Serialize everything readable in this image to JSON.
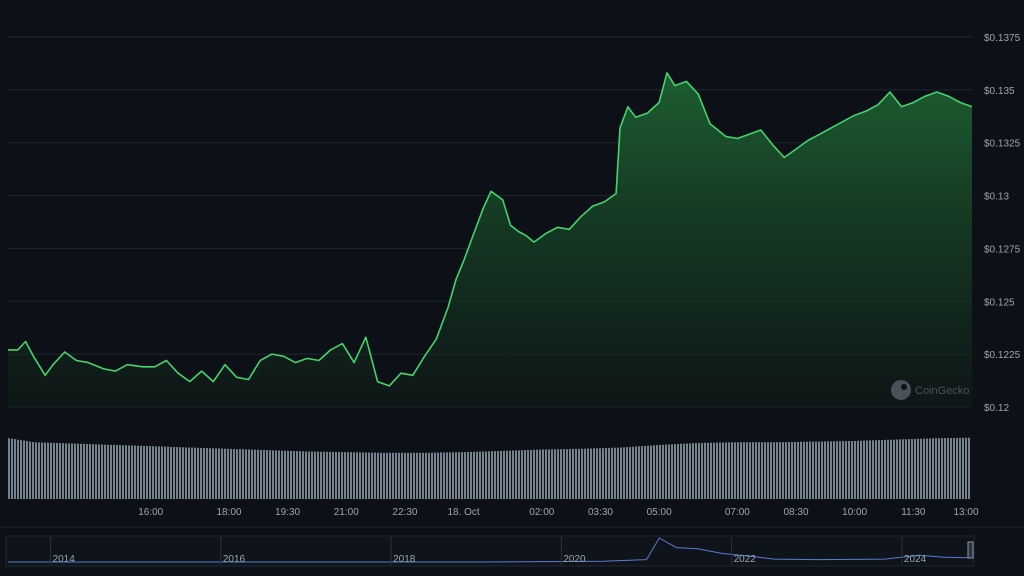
{
  "theme": {
    "background": "#0d1117",
    "grid": "#1f2630",
    "line": "#45d36b",
    "area_top": "#1f6b35",
    "area_bottom": "#0f1a16",
    "volume": "#8b96a4",
    "axis_text": "#9aa4b1",
    "nav_line": "#5a7bd0",
    "watermark": "#5d6470"
  },
  "watermark": {
    "label": "CoinGecko"
  },
  "chart_data": {
    "type": "area",
    "title": "",
    "xlabel": "",
    "ylabel": "",
    "y_ticks": [
      "$0.12",
      "$0.1225",
      "$0.125",
      "$0.1275",
      "$0.13",
      "$0.1325",
      "$0.135",
      "$0.1375"
    ],
    "y_tick_values": [
      0.12,
      0.1225,
      0.125,
      0.1275,
      0.13,
      0.1325,
      0.135,
      0.1375
    ],
    "ylim": [
      0.12,
      0.1375
    ],
    "x_ticks": [
      "16:00",
      "18:00",
      "19:30",
      "21:00",
      "22:30",
      "18. Oct",
      "02:00",
      "03:30",
      "05:00",
      "07:00",
      "08:30",
      "10:00",
      "11:30",
      "13:00"
    ],
    "x_tick_hours": [
      16.0,
      18.0,
      19.5,
      21.0,
      22.5,
      24.0,
      26.0,
      27.5,
      29.0,
      31.0,
      32.5,
      34.0,
      35.5,
      37.0
    ],
    "xlim_hours": [
      12.35,
      37.0
    ],
    "grid": true,
    "price_series": {
      "x_hours": [
        12.35,
        12.6,
        12.8,
        13.0,
        13.3,
        13.5,
        13.8,
        14.1,
        14.4,
        14.8,
        15.1,
        15.4,
        15.8,
        16.1,
        16.4,
        16.7,
        17.0,
        17.3,
        17.6,
        17.9,
        18.2,
        18.5,
        18.8,
        19.1,
        19.4,
        19.7,
        20.0,
        20.3,
        20.6,
        20.9,
        21.2,
        21.5,
        21.8,
        22.1,
        22.4,
        22.7,
        23.0,
        23.3,
        23.6,
        23.8,
        24.0,
        24.2,
        24.5,
        24.7,
        25.0,
        25.2,
        25.4,
        25.6,
        25.8,
        26.1,
        26.4,
        26.7,
        27.0,
        27.3,
        27.6,
        27.9,
        28.0,
        28.2,
        28.4,
        28.7,
        29.0,
        29.2,
        29.4,
        29.7,
        30.0,
        30.3,
        30.5,
        30.7,
        31.0,
        31.3,
        31.6,
        31.9,
        32.2,
        32.5,
        32.8,
        33.1,
        33.4,
        33.7,
        34.0,
        34.3,
        34.6,
        34.9,
        35.2,
        35.5,
        35.8,
        36.1,
        36.4,
        36.7,
        37.0
      ],
      "y": [
        0.1227,
        0.1227,
        0.1231,
        0.1224,
        0.1215,
        0.122,
        0.1226,
        0.1222,
        0.1221,
        0.1218,
        0.1217,
        0.122,
        0.1219,
        0.1219,
        0.1222,
        0.1216,
        0.1212,
        0.1217,
        0.1212,
        0.122,
        0.1214,
        0.1213,
        0.1222,
        0.1225,
        0.1224,
        0.1221,
        0.1223,
        0.1222,
        0.1227,
        0.123,
        0.1221,
        0.1233,
        0.1212,
        0.121,
        0.1216,
        0.1215,
        0.1224,
        0.1232,
        0.1247,
        0.126,
        0.1269,
        0.1279,
        0.1294,
        0.1302,
        0.1298,
        0.1286,
        0.1283,
        0.1281,
        0.1278,
        0.1282,
        0.1285,
        0.1284,
        0.129,
        0.1295,
        0.1297,
        0.1301,
        0.1332,
        0.1342,
        0.1337,
        0.1339,
        0.1344,
        0.1358,
        0.1352,
        0.1354,
        0.1348,
        0.1334,
        0.1331,
        0.1328,
        0.1327,
        0.1329,
        0.1331,
        0.1324,
        0.1318,
        0.1322,
        0.1326,
        0.1329,
        0.1332,
        0.1335,
        0.1338,
        0.134,
        0.1343,
        0.1349,
        0.1342,
        0.1344,
        0.1347,
        0.1349,
        0.1347,
        0.1344,
        0.1342
      ]
    },
    "volume_series": {
      "x_hours": [
        12.35,
        13.0,
        14.0,
        15.0,
        16.0,
        17.0,
        18.0,
        19.0,
        20.0,
        21.0,
        22.0,
        23.0,
        24.0,
        25.0,
        26.0,
        27.0,
        28.0,
        29.0,
        30.0,
        31.0,
        32.0,
        33.0,
        34.0,
        35.0,
        36.0,
        37.0
      ],
      "relative_height": [
        0.92,
        0.86,
        0.84,
        0.82,
        0.8,
        0.78,
        0.76,
        0.74,
        0.72,
        0.71,
        0.7,
        0.7,
        0.71,
        0.73,
        0.75,
        0.76,
        0.78,
        0.82,
        0.85,
        0.86,
        0.86,
        0.87,
        0.88,
        0.9,
        0.92,
        0.93
      ]
    }
  },
  "navigator": {
    "year_labels": [
      "2014",
      "2016",
      "2018",
      "2020",
      "2022",
      "2024"
    ],
    "year_values": [
      2014,
      2016,
      2018,
      2020,
      2022,
      2024
    ],
    "xlim_years": [
      2013.5,
      2024.8
    ],
    "history": {
      "x_years": [
        2013.5,
        2016.0,
        2019.0,
        2020.5,
        2021.0,
        2021.15,
        2021.35,
        2021.6,
        2021.9,
        2022.2,
        2022.5,
        2023.0,
        2023.8,
        2024.2,
        2024.5,
        2024.8
      ],
      "relative_price": [
        0.0,
        0.0,
        0.0,
        0.03,
        0.1,
        1.0,
        0.6,
        0.55,
        0.35,
        0.25,
        0.12,
        0.1,
        0.12,
        0.28,
        0.2,
        0.18
      ]
    }
  }
}
